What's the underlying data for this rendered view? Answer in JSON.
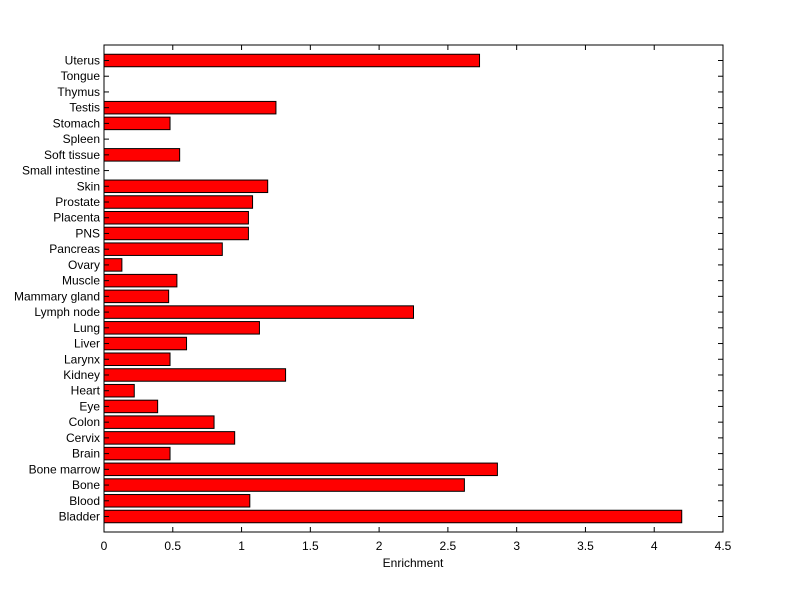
{
  "chart_data": {
    "type": "bar",
    "orientation": "horizontal",
    "categories": [
      "Uterus",
      "Tongue",
      "Thymus",
      "Testis",
      "Stomach",
      "Spleen",
      "Soft tissue",
      "Small intestine",
      "Skin",
      "Prostate",
      "Placenta",
      "PNS",
      "Pancreas",
      "Ovary",
      "Muscle",
      "Mammary gland",
      "Lymph node",
      "Lung",
      "Liver",
      "Larynx",
      "Kidney",
      "Heart",
      "Eye",
      "Colon",
      "Cervix",
      "Brain",
      "Bone marrow",
      "Bone",
      "Blood",
      "Bladder"
    ],
    "values": [
      2.73,
      0,
      0,
      1.25,
      0.48,
      0,
      0.55,
      0,
      1.19,
      1.08,
      1.05,
      1.05,
      0.86,
      0.13,
      0.53,
      0.47,
      2.25,
      1.13,
      0.6,
      0.48,
      1.32,
      0.22,
      0.39,
      0.8,
      0.95,
      0.48,
      2.86,
      2.62,
      1.06,
      4.2
    ],
    "xlabel": "Enrichment",
    "ylabel": "",
    "title": "",
    "xlim": [
      0,
      4.5
    ],
    "xticks": [
      0,
      0.5,
      1,
      1.5,
      2,
      2.5,
      3,
      3.5,
      4,
      4.5
    ],
    "xtick_labels": [
      "0",
      "0.5",
      "1",
      "1.5",
      "2",
      "2.5",
      "3",
      "3.5",
      "4",
      "4.5"
    ],
    "grid": false,
    "colors": {
      "bar_fill": "#ff0000",
      "bar_edge": "#000000",
      "axis": "#000000",
      "background": "#ffffff"
    }
  }
}
